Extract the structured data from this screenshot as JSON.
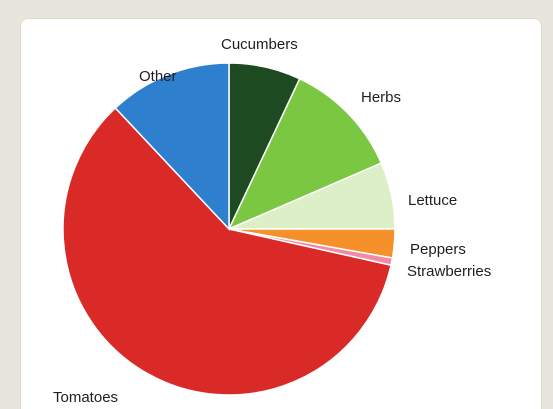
{
  "chart_data": {
    "type": "pie",
    "title": "",
    "slices": [
      {
        "name": "Cucumbers",
        "value": 7.0,
        "color": "#1e4a21"
      },
      {
        "name": "Herbs",
        "value": 11.5,
        "color": "#7bc742"
      },
      {
        "name": "Lettuce",
        "value": 6.5,
        "color": "#dcefc7"
      },
      {
        "name": "Peppers",
        "value": 2.8,
        "color": "#f5902a"
      },
      {
        "name": "Strawberries",
        "value": 0.7,
        "color": "#f08aa6"
      },
      {
        "name": "Tomatoes",
        "value": 59.5,
        "color": "#d92a27"
      },
      {
        "name": "Other",
        "value": 12.0,
        "color": "#2f7fcf"
      }
    ],
    "legend": "none",
    "labels_placement": "outside"
  }
}
